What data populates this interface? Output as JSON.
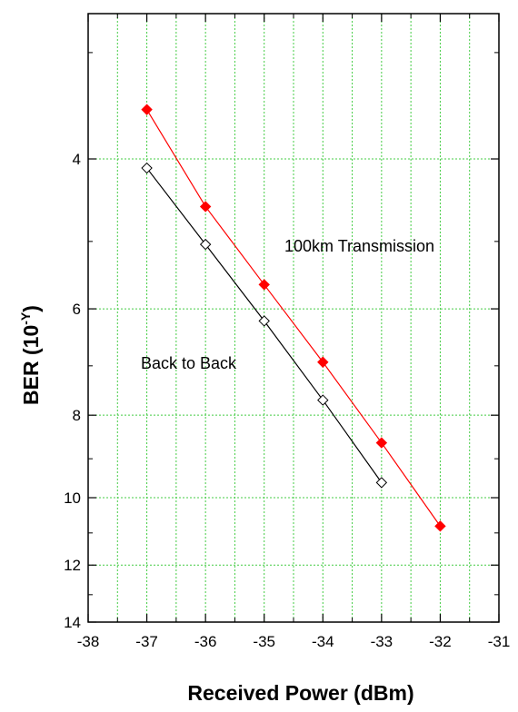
{
  "chart_data": {
    "type": "line",
    "title": "",
    "xlabel": "Received Power (dBm)",
    "ylabel": {
      "main": "BER (10",
      "sup": "-Y",
      "close": ")"
    },
    "xlim": [
      -38,
      -31
    ],
    "ylim": [
      14,
      2.7
    ],
    "y_scale": "log(-log10 BER), inverted; tick values are Y in BER = 10^-Y",
    "x_ticks": [
      "-38",
      "-37",
      "-36",
      "-35",
      "-34",
      "-33",
      "-32",
      "-31"
    ],
    "y_ticks": [
      "4",
      "6",
      "8",
      "10",
      "12",
      "14"
    ],
    "y_minor_ticks": [
      3,
      5,
      7,
      9,
      11,
      13
    ],
    "grid": true,
    "series": [
      {
        "name": "100km Transmission",
        "color": "#ff0000",
        "marker": "filled-diamond",
        "x": [
          -37,
          -36,
          -35,
          -34,
          -33,
          -32
        ],
        "y": [
          3.5,
          4.55,
          5.62,
          6.93,
          8.62,
          10.8
        ]
      },
      {
        "name": "Back to Back",
        "color": "#000000",
        "marker": "open-diamond",
        "x": [
          -37,
          -36,
          -35,
          -34,
          -33
        ],
        "y": [
          4.1,
          5.04,
          6.2,
          7.68,
          9.6
        ]
      }
    ]
  }
}
